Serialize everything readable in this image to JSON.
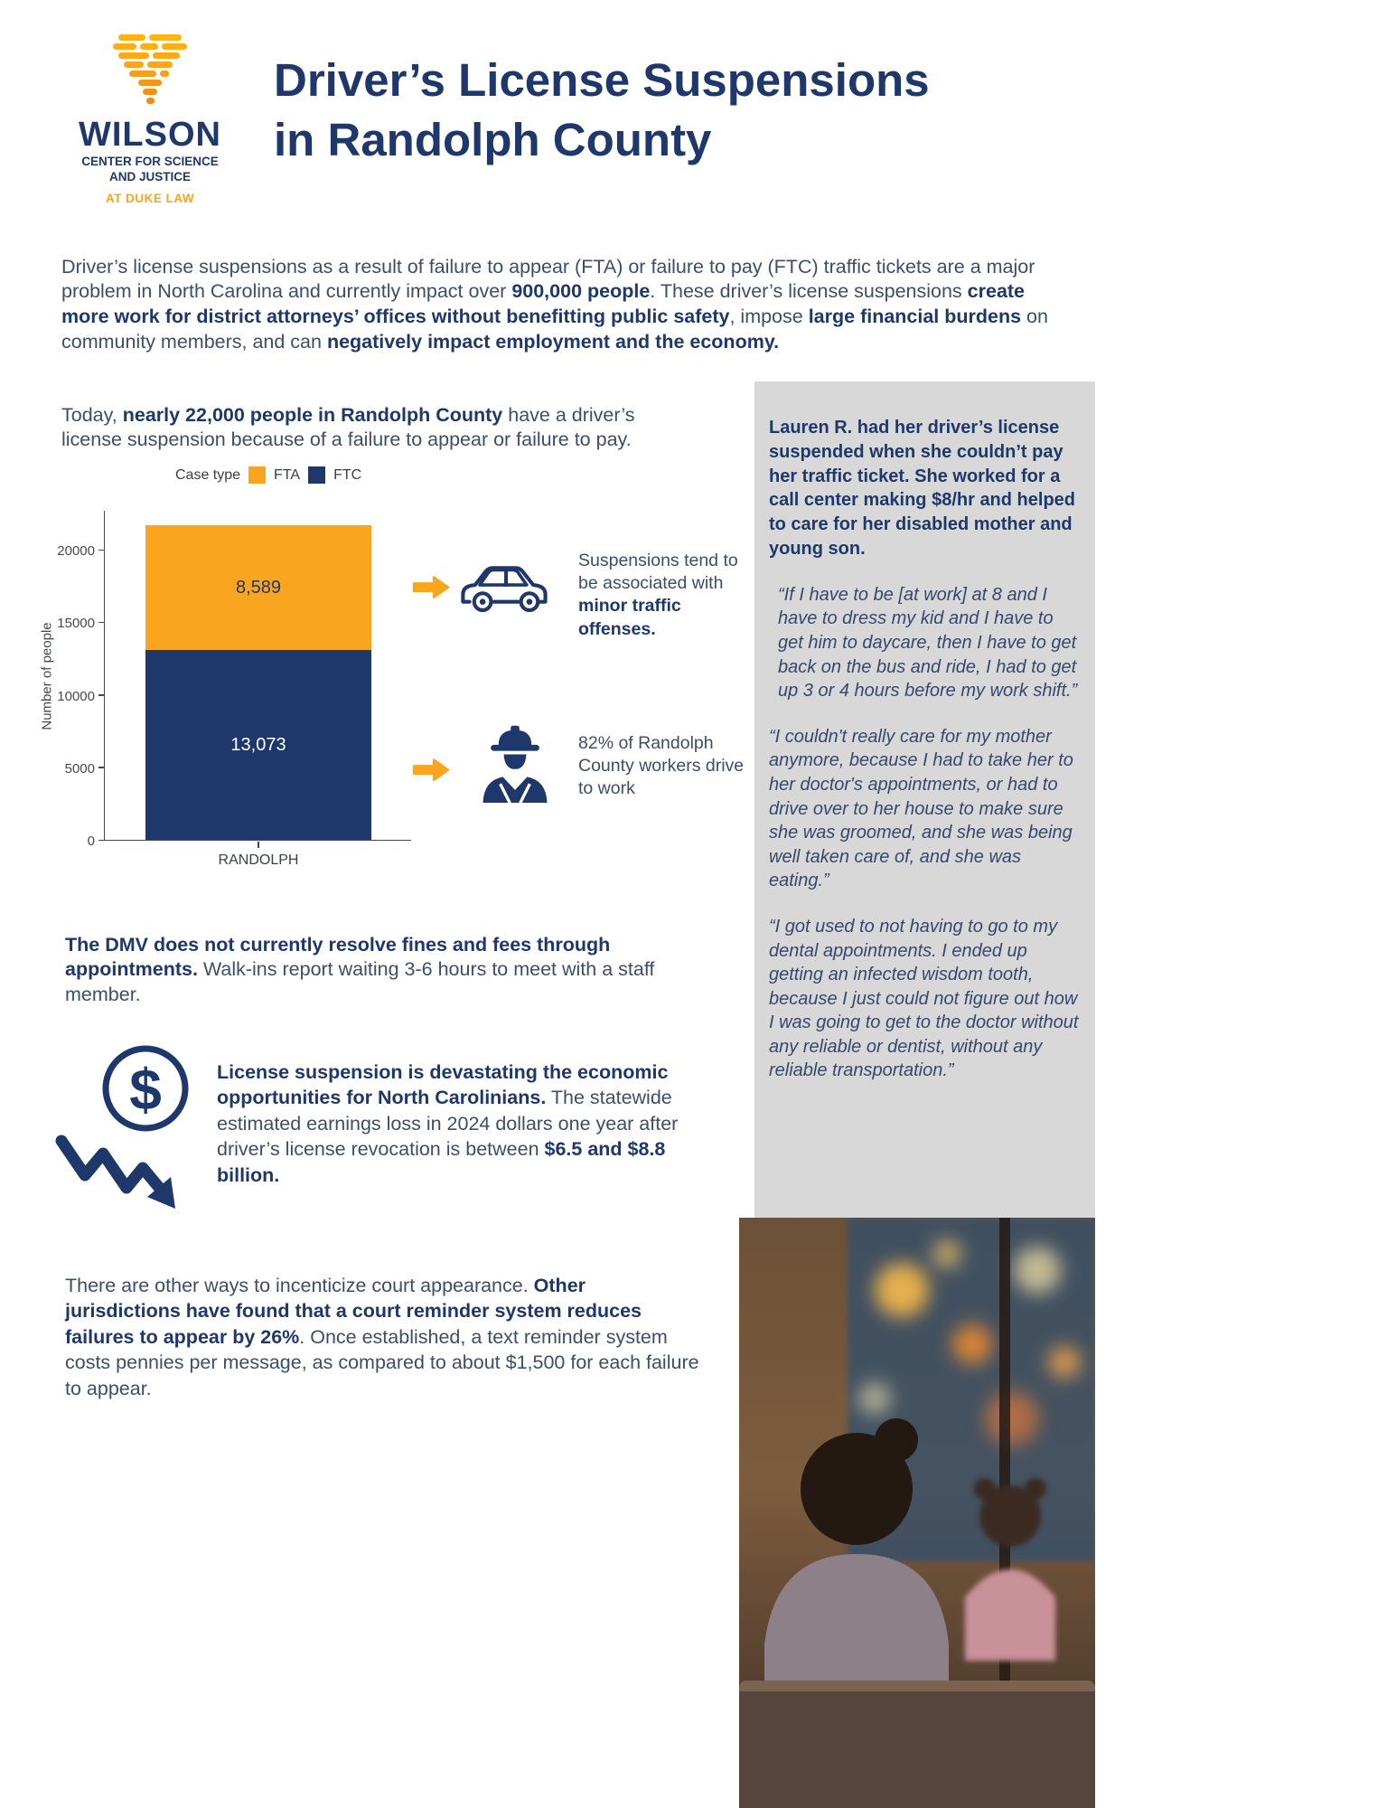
{
  "colors": {
    "navy": "#1e386b",
    "orange": "#f9a51f",
    "sidebar_gray": "#d8d8d8",
    "body_text": "#3c4e68"
  },
  "logo": {
    "wordmark": "WILSON",
    "line1": "CENTER FOR SCIENCE",
    "line2": "AND JUSTICE",
    "line3": "AT DUKE LAW"
  },
  "header": {
    "title_line1": "Driver’s License Suspensions",
    "title_line2": "in Randolph County"
  },
  "intro": {
    "segments": [
      {
        "t": "Driver’s license suspensions as a result of failure to appear (FTA) or failure to pay (FTC) traffic tickets are a major problem in North Carolina and currently impact over "
      },
      {
        "t": "900,000 people",
        "b": true
      },
      {
        "t": ". These driver’s license suspensions "
      },
      {
        "t": "create more work for district attorneys’ offices without benefitting public safety",
        "b": true
      },
      {
        "t": ", impose "
      },
      {
        "t": "large financial burdens",
        "b": true
      },
      {
        "t": " on community members, and can "
      },
      {
        "t": "negatively impact employment and the economy.",
        "b": true
      }
    ]
  },
  "today": {
    "segments": [
      {
        "t": "Today, "
      },
      {
        "t": "nearly 22,000 people in Randolph County",
        "b": true
      },
      {
        "t": " have a driver’s license suspension because of a failure to appear or failure to pay."
      }
    ]
  },
  "chart_data": {
    "type": "bar",
    "stacked": true,
    "title": "",
    "legend_title": "Case type",
    "legend": [
      "FTA",
      "FTC"
    ],
    "categories": [
      "RANDOLPH"
    ],
    "series": [
      {
        "name": "FTC",
        "values": [
          13073
        ],
        "label": "13,073",
        "color": "#1e386b",
        "label_color": "#ffffff"
      },
      {
        "name": "FTA",
        "values": [
          8589
        ],
        "label": "8,589",
        "color": "#f9a51f",
        "label_color": "#1e386b"
      }
    ],
    "total": 21662,
    "ylabel": "Number of people",
    "yticks": [
      0,
      5000,
      10000,
      15000,
      20000
    ],
    "y_max": 22700,
    "grid": false,
    "legend_position": "top"
  },
  "callouts": [
    {
      "icon": "car-icon",
      "segments": [
        {
          "t": "Suspensions tend to be associated with "
        },
        {
          "t": "minor traffic offenses.",
          "b": true
        }
      ]
    },
    {
      "icon": "construction-worker-icon",
      "segments": [
        {
          "t": "82% of Randolph County workers drive to work"
        }
      ]
    }
  ],
  "dmv": {
    "segments": [
      {
        "t": "The DMV does not currently resolve fines and fees through appointments.",
        "b": true
      },
      {
        "t": " Walk-ins report waiting 3-6 hours to meet with a staff member."
      }
    ]
  },
  "economic": {
    "icon_dollar": "$",
    "segments": [
      {
        "t": "License suspension is devastating the economic opportunities for North Carolinians.",
        "b": true
      },
      {
        "t": " The statewide estimated earnings loss in 2024 dollars one year after driver’s license revocation is between "
      },
      {
        "t": "$6.5 and $8.8 billion.",
        "b": true
      }
    ]
  },
  "court": {
    "segments": [
      {
        "t": "There are other ways to incenticize court appearance. "
      },
      {
        "t": "Other jurisdictions have found that a court reminder system reduces failures to appear by 26%",
        "b": true
      },
      {
        "t": ". Once established, a text reminder system costs pennies per message, as compared to about $1,500 for each failure to appear."
      }
    ]
  },
  "sidebar": {
    "lead": "Lauren R. had her driver’s license suspended when she couldn’t pay her traffic ticket. She worked for a call center making $8/hr and helped to care for her disabled mother and young son.",
    "quotes": [
      "“If I have to be [at work] at 8 and I have to dress my kid and I have to get him to daycare, then I have to get back on the bus and ride, I had to get up 3 or 4 hours before my work shift.”",
      "“I couldn't really care for my mother anymore, because I had to take her to her doctor's appointments, or had to drive over to her house to make sure she was groomed, and she was being well taken care of, and she was eating.”",
      "“I got used to not having to go to my dental appointments. I ended up getting an infected wisdom tooth, because I just could not figure out how I was going to get to the doctor without any reliable or dentist, without any reliable transportation.”"
    ]
  }
}
